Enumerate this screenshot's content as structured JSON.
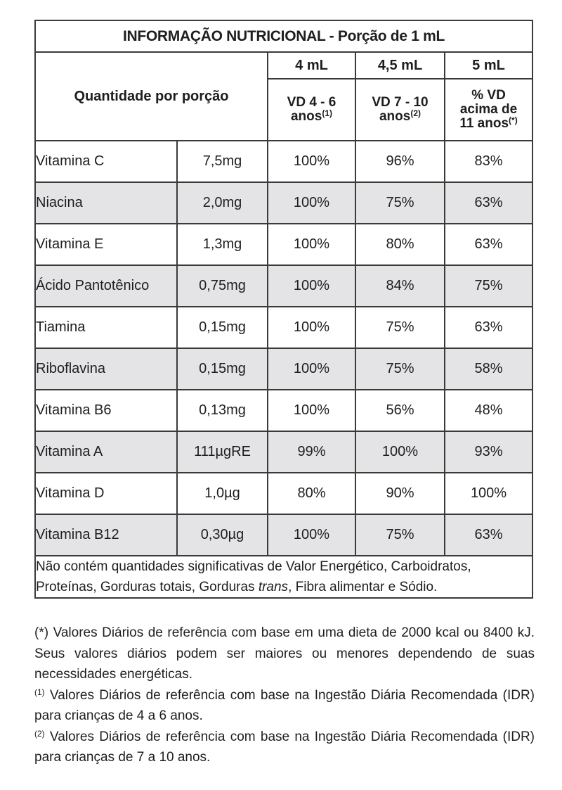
{
  "table": {
    "title": "INFORMAÇÃO NUTRICIONAL - Porção de 1 mL",
    "quantity_header": "Quantidade por porção",
    "portions": [
      "4 mL",
      "4,5 mL",
      "5 mL"
    ],
    "vd_headers": [
      {
        "text": "VD 4 - 6 anos",
        "sup": "(1)"
      },
      {
        "text": "VD 7 - 10 anos",
        "sup": "(2)"
      },
      {
        "text": "% VD acima de 11 anos",
        "sup": "(*)"
      }
    ],
    "rows": [
      {
        "name": "Vitamina C",
        "amount": "7,5mg",
        "vd1": "100%",
        "vd2": "96%",
        "vd3": "83%"
      },
      {
        "name": "Niacina",
        "amount": "2,0mg",
        "vd1": "100%",
        "vd2": "75%",
        "vd3": "63%"
      },
      {
        "name": "Vitamina E",
        "amount": "1,3mg",
        "vd1": "100%",
        "vd2": "80%",
        "vd3": "63%"
      },
      {
        "name": "Ácido Pantotênico",
        "amount": "0,75mg",
        "vd1": "100%",
        "vd2": "84%",
        "vd3": "75%"
      },
      {
        "name": "Tiamina",
        "amount": "0,15mg",
        "vd1": "100%",
        "vd2": "75%",
        "vd3": "63%"
      },
      {
        "name": "Riboflavina",
        "amount": "0,15mg",
        "vd1": "100%",
        "vd2": "75%",
        "vd3": "58%"
      },
      {
        "name": "Vitamina B6",
        "amount": "0,13mg",
        "vd1": "100%",
        "vd2": "56%",
        "vd3": "48%"
      },
      {
        "name": "Vitamina A",
        "amount": "111µgRE",
        "vd1": "99%",
        "vd2": "100%",
        "vd3": "93%"
      },
      {
        "name": "Vitamina D",
        "amount": "1,0µg",
        "vd1": "80%",
        "vd2": "90%",
        "vd3": "100%"
      },
      {
        "name": "Vitamina B12",
        "amount": "0,30µg",
        "vd1": "100%",
        "vd2": "75%",
        "vd3": "63%"
      }
    ],
    "note_before_italic": "Não contém quantidades significativas de Valor Energético, Carboidratos, Proteínas, Gorduras totais, Gorduras ",
    "note_italic": "trans",
    "note_after_italic": ", Fibra alimentar e Sódio."
  },
  "footnotes": [
    {
      "mark": "(*)",
      "text": " Valores Diários de referência com base em uma dieta de 2000 kcal ou 8400 kJ. Seus valores diários podem ser maiores ou menores dependendo de suas necessidades energéticas."
    },
    {
      "mark": "(1)",
      "text": " Valores Diários de referência com base na Ingestão Diária Recomendada (IDR) para crianças de 4 a 6 anos."
    },
    {
      "mark": "(2)",
      "text": " Valores Diários de referência com base na Ingestão Diária Recomendada (IDR) para crianças de 7 a 10 anos."
    }
  ]
}
